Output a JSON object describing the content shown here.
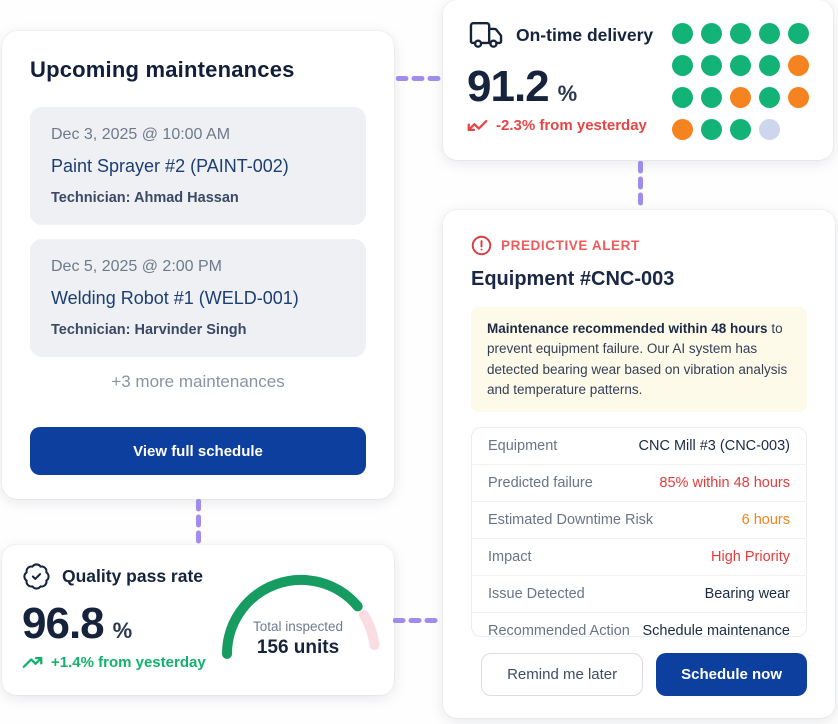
{
  "colors": {
    "navy_text": "#15233d",
    "blue_button": "#0c3f9e",
    "red": "#e64545",
    "orange": "#f5821f",
    "green": "#10b26c",
    "connector_purple": "#a08bef",
    "dot_green": "#13b377",
    "dot_orange": "#f5831f",
    "dot_muted": "#ccd6ec",
    "gauge_green": "#169c60",
    "gauge_remainder": "#f9dde2",
    "note_background": "#fdfae9",
    "entry_background": "#eef0f4"
  },
  "connectors": {
    "color": "#a08bef"
  },
  "maintenance_card": {
    "title": "Upcoming maintenances",
    "entries": [
      {
        "datetime": "Dec 3, 2025 @ 10:00 AM",
        "equipment": "Paint Sprayer #2 (PAINT-002)",
        "technician": "Technician: Ahmad Hassan"
      },
      {
        "datetime": "Dec 5, 2025 @ 2:00 PM",
        "equipment": "Welding Robot #1 (WELD-001)",
        "technician": "Technician: Harvinder Singh"
      }
    ],
    "more_label": "+3 more maintenances",
    "button_label": "View full schedule"
  },
  "delivery_card": {
    "icon": "truck-icon",
    "title": "On-time delivery",
    "value": "91.2",
    "unit": "%",
    "trend_label": "-2.3% from yesterday",
    "trend_direction": "down",
    "dot_grid": {
      "rows": [
        [
          "green",
          "green",
          "green",
          "green",
          "green"
        ],
        [
          "green",
          "green",
          "green",
          "green",
          "orange"
        ],
        [
          "green",
          "green",
          "orange",
          "green",
          "orange"
        ],
        [
          "orange",
          "green",
          "green",
          "muted",
          null
        ]
      ],
      "colors": {
        "green": "#13b377",
        "orange": "#f5831f",
        "muted": "#ccd6ec"
      }
    }
  },
  "quality_card": {
    "icon": "badge-check-icon",
    "title": "Quality pass rate",
    "value": "96.8",
    "unit": "%",
    "trend_label": "+1.4% from yesterday",
    "trend_direction": "up",
    "gauge": {
      "label": "Total inspected",
      "sublabel": "156 units",
      "arc_color": "#169c60",
      "remainder_color": "#f9dde2"
    }
  },
  "alert_card": {
    "badge_label": "PREDICTIVE ALERT",
    "title": "Equipment #CNC-003",
    "note_bold": "Maintenance recommended within 48 hours",
    "note_rest": " to prevent equipment failure.  Our AI system has detected bearing wear based on vibration analysis and temperature patterns.",
    "rows": [
      {
        "label": "Equipment",
        "value": "CNC Mill #3 (CNC-003)",
        "tone": "dark"
      },
      {
        "label": "Predicted failure",
        "value": "85% within 48 hours",
        "tone": "red"
      },
      {
        "label": "Estimated Downtime Risk",
        "value": "6 hours",
        "tone": "orange"
      },
      {
        "label": "Impact",
        "value": "High Priority",
        "tone": "red"
      },
      {
        "label": "Issue Detected",
        "value": "Bearing wear",
        "tone": "dark"
      },
      {
        "label": "Recommended Action",
        "value": "Schedule maintenance",
        "tone": "dark"
      }
    ],
    "secondary_button_label": "Remind me later",
    "primary_button_label": "Schedule now"
  }
}
